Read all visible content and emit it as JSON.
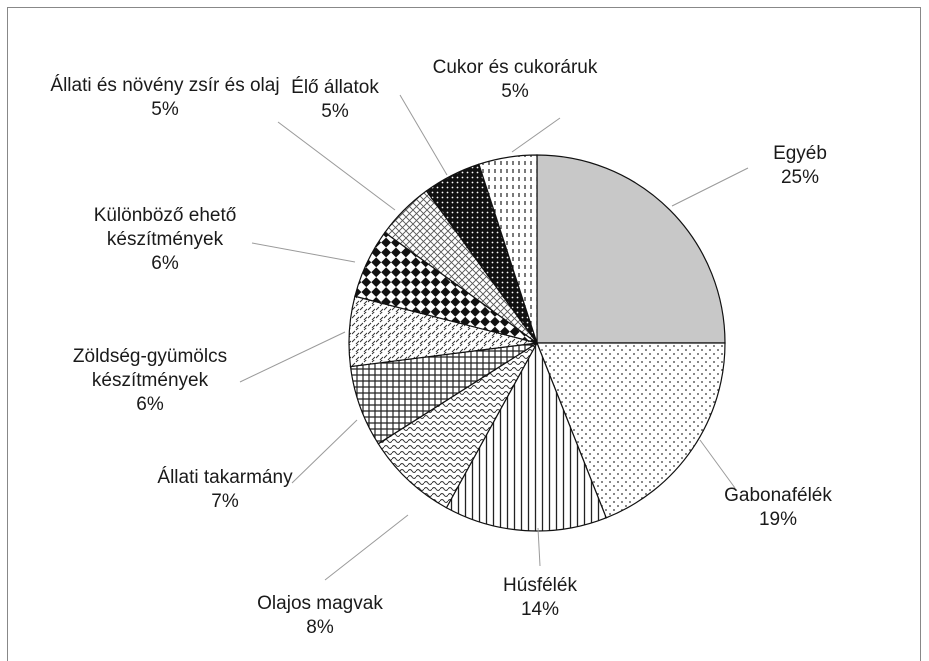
{
  "chart_data": {
    "type": "pie",
    "categories": [
      "Egyéb",
      "Gabonafélék",
      "Húsfélék",
      "Olajos magvak",
      "Állati takarmány",
      "Zöldség-gyümölcs készítmények",
      "Különböző ehető készítmények",
      "Állati és növény zsír és olaj",
      "Élő állatok",
      "Cukor és cukoráruk"
    ],
    "values": [
      25,
      19,
      14,
      8,
      7,
      6,
      6,
      5,
      5,
      5
    ],
    "value_labels": [
      "25%",
      "19%",
      "14%",
      "8%",
      "7%",
      "6%",
      "6%",
      "5%",
      "5%",
      "5%"
    ]
  }
}
